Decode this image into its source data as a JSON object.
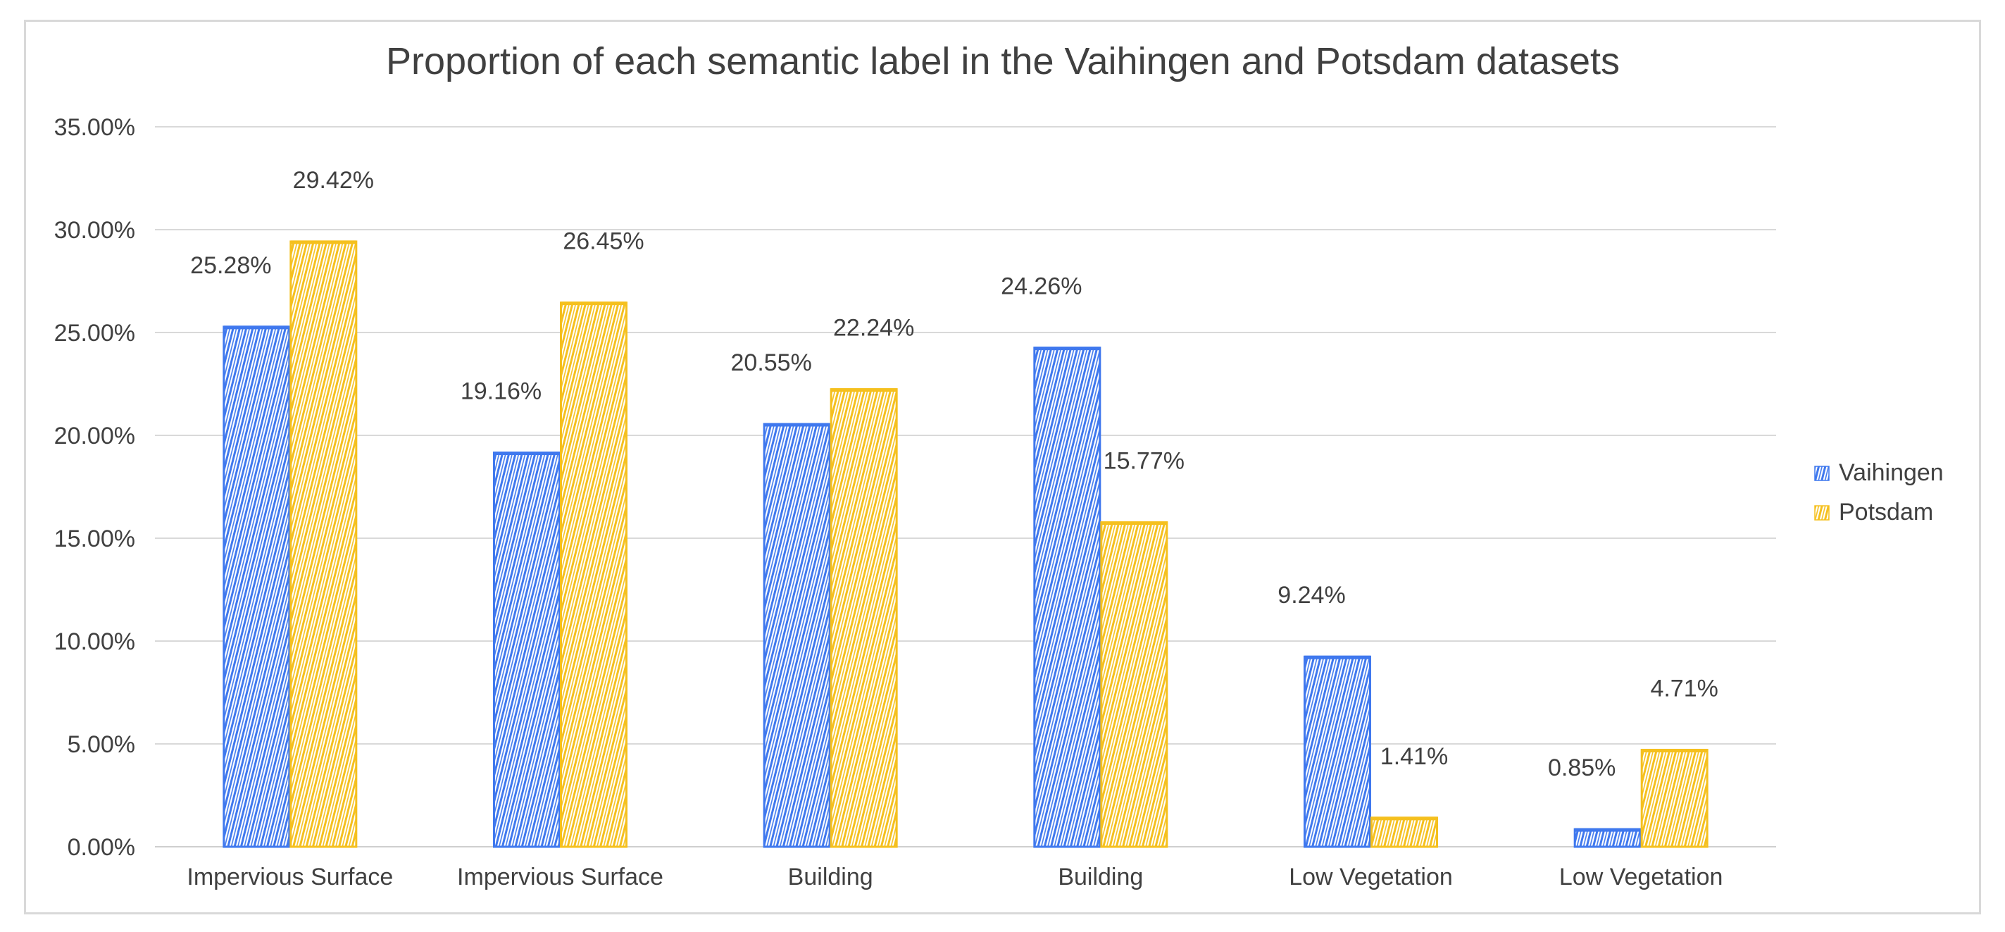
{
  "chart_data": {
    "type": "bar",
    "title": "Proportion of each semantic label in the Vaihingen and Potsdam datasets",
    "xlabel": "",
    "ylabel": "",
    "ylim": [
      0,
      35
    ],
    "y_ticks": [
      "0.00%",
      "5.00%",
      "10.00%",
      "15.00%",
      "20.00%",
      "25.00%",
      "30.00%",
      "35.00%"
    ],
    "grid": true,
    "legend_position": "right",
    "categories": [
      "Impervious Surface",
      "Impervious Surface",
      "Building",
      "Building",
      "Low Vegetation",
      "Low Vegetation"
    ],
    "series": [
      {
        "name": "Vaihingen",
        "color": "#3f78ee",
        "values": [
          25.28,
          19.16,
          20.55,
          24.26,
          9.24,
          0.85
        ],
        "labels": [
          "25.28%",
          "19.16%",
          "20.55%",
          "24.26%",
          "9.24%",
          "0.85%"
        ]
      },
      {
        "name": "Potsdam",
        "color": "#f5c01e",
        "values": [
          29.42,
          26.45,
          22.24,
          15.77,
          1.41,
          4.71
        ],
        "labels": [
          "29.42%",
          "26.45%",
          "22.24%",
          "15.77%",
          "1.41%",
          "4.71%"
        ]
      }
    ]
  }
}
